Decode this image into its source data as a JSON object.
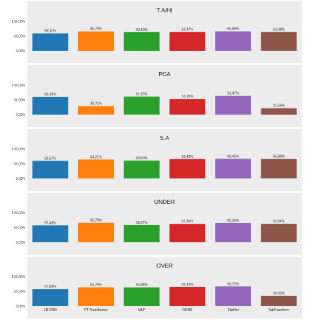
{
  "chart_data": [
    {
      "type": "bar",
      "title": "T.A/HI",
      "categories": [
        "1D-CNN",
        "FT-Transformer",
        "MLP",
        "NODE",
        "TabNet",
        "TabTransform"
      ],
      "values": [
        59.11,
        65.7,
        63.1,
        63.47,
        65.89,
        63.38
      ],
      "labels": [
        "59,11%",
        "65,70%",
        "63,10%",
        "63,47%",
        "65,89%",
        "63,38%"
      ],
      "ylim": [
        0,
        100
      ],
      "yticks": [
        "0,00%",
        "50,00%",
        "100,00%"
      ],
      "grid": false
    },
    {
      "type": "bar",
      "title": "PCA",
      "categories": [
        "1D-CNN",
        "FT-Transformer",
        "MLP",
        "NODE",
        "TabNet",
        "TabTransform"
      ],
      "values": [
        60.13,
        28.71,
        61.15,
        53.15,
        63.47,
        21.56
      ],
      "labels": [
        "60,13%",
        "28,71%",
        "61,15%",
        "53,15%",
        "63,47%",
        "21,56%"
      ],
      "ylim": [
        0,
        100
      ],
      "yticks": [
        "0,00%",
        "50,00%",
        "100,00%"
      ],
      "grid": false
    },
    {
      "type": "bar",
      "title": "S.A",
      "categories": [
        "1D-CNN",
        "FT-Transformer",
        "MLP",
        "NODE",
        "TabNet",
        "TabTransform"
      ],
      "values": [
        59.57,
        64.21,
        60.5,
        65.42,
        66.45,
        65.89
      ],
      "labels": [
        "59,57%",
        "64,21%",
        "60,50%",
        "65,42%",
        "66,45%",
        "65,89%"
      ],
      "ylim": [
        0,
        100
      ],
      "yticks": [
        "0,00%",
        "50,00%",
        "100,00%"
      ],
      "grid": false
    },
    {
      "type": "bar",
      "title": "UNDER",
      "categories": [
        "1D-CNN",
        "FT-Transformer",
        "MLP",
        "NODE",
        "TabNet",
        "TabTransform"
      ],
      "values": [
        57.43,
        65.7,
        58.27,
        62.36,
        65.25,
        62.54
      ],
      "labels": [
        "57,43%",
        "65,70%",
        "58,27%",
        "62,36%",
        "65,25%",
        "62,54%"
      ],
      "ylim": [
        0,
        100
      ],
      "yticks": [
        "0,00%",
        "50,00%",
        "100,00%"
      ],
      "grid": false
    },
    {
      "type": "bar",
      "title": "OVER",
      "categories": [
        "1D-CNN",
        "FT-Transformer",
        "MLP",
        "NODE",
        "TabNet",
        "TabTransform"
      ],
      "values": [
        57.8,
        63.75,
        63.38,
        65.15,
        66.72,
        35.03
      ],
      "labels": [
        "57,80%",
        "63,75%",
        "63,38%",
        "65,15%",
        "66,72%",
        "35,03%"
      ],
      "ylim": [
        0,
        100
      ],
      "yticks": [
        "0,00%",
        "50,00%",
        "100,00%"
      ],
      "grid": false,
      "show_xticklabels": true
    }
  ],
  "colors": [
    "#1f77b4",
    "#ff7f0e",
    "#2ca02c",
    "#d62728",
    "#9467bd",
    "#8c564b"
  ],
  "panel_background": "#ececec"
}
